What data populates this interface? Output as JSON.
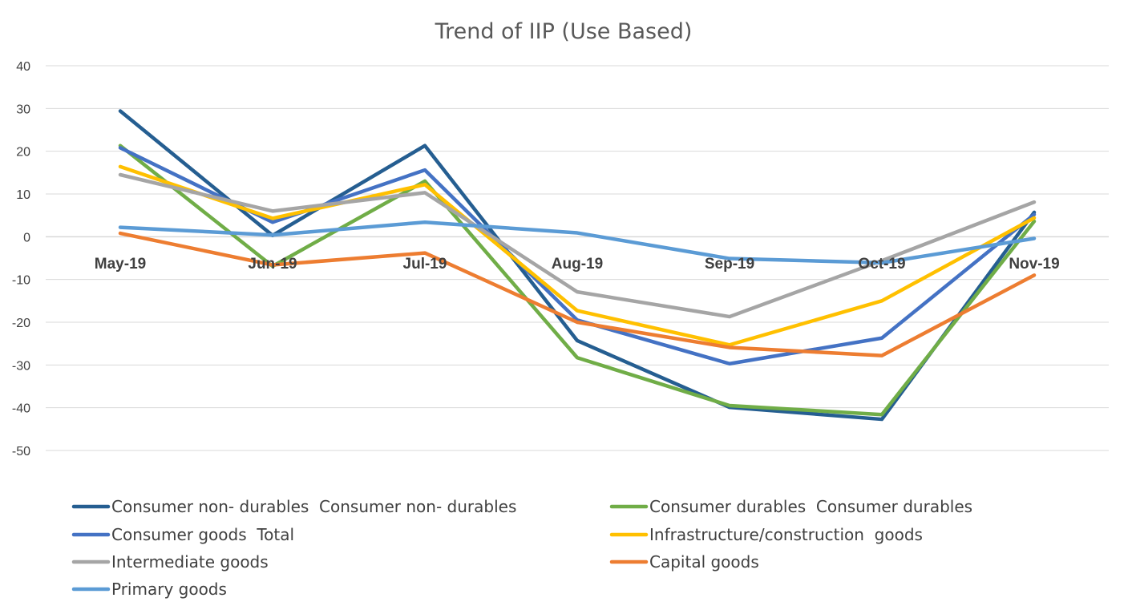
{
  "chart_data": {
    "type": "line",
    "title": "Trend of IIP (Use Based)",
    "xlabel": "",
    "ylabel": "",
    "ylim": [
      -50,
      40
    ],
    "y_ticks": [
      40,
      30,
      20,
      10,
      0,
      -10,
      -20,
      -30,
      -40,
      -50
    ],
    "grid": true,
    "legend_position": "bottom",
    "categories": [
      "May-19",
      "Jun-19",
      "Jul-19",
      "Aug-19",
      "Sep-19",
      "Oct-19",
      "Nov-19"
    ],
    "series": [
      {
        "name": "Consumer non- durables  Consumer non- durables",
        "color": "#255e91",
        "values": [
          29.4,
          0.3,
          21.3,
          -24.3,
          -39.9,
          -42.7,
          5.7
        ]
      },
      {
        "name": "Consumer durables  Consumer durables",
        "color": "#70ad47",
        "values": [
          21.3,
          -6.9,
          13.0,
          -28.3,
          -39.5,
          -41.6,
          3.6
        ]
      },
      {
        "name": "Consumer goods  Total",
        "color": "#4472c4",
        "values": [
          20.8,
          3.4,
          15.6,
          -19.5,
          -29.7,
          -23.7,
          5.2
        ]
      },
      {
        "name": "Infrastructure/construction  goods",
        "color": "#ffc000",
        "values": [
          16.4,
          4.3,
          12.2,
          -17.3,
          -25.3,
          -15.0,
          4.4
        ]
      },
      {
        "name": "Intermediate goods",
        "color": "#a5a5a5",
        "values": [
          14.5,
          6.0,
          10.3,
          -12.9,
          -18.7,
          -5.6,
          8.1
        ]
      },
      {
        "name": "Capital goods",
        "color": "#ed7d31",
        "values": [
          0.8,
          -6.6,
          -3.8,
          -20.0,
          -25.9,
          -27.8,
          -9.0
        ]
      },
      {
        "name": "Primary goods",
        "color": "#5b9bd5",
        "values": [
          2.2,
          0.4,
          3.4,
          0.9,
          -5.1,
          -6.1,
          -0.4
        ]
      }
    ]
  }
}
